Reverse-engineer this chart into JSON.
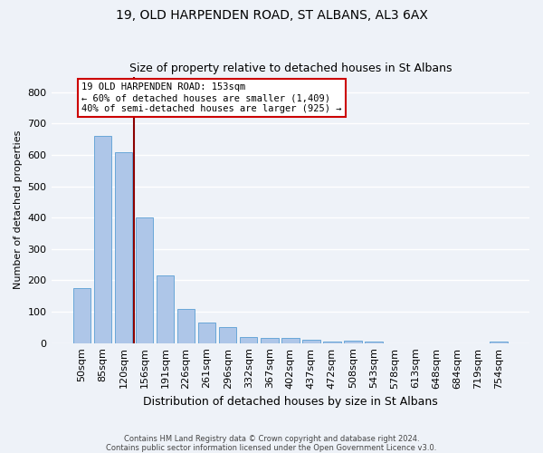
{
  "title1": "19, OLD HARPENDEN ROAD, ST ALBANS, AL3 6AX",
  "title2": "Size of property relative to detached houses in St Albans",
  "xlabel": "Distribution of detached houses by size in St Albans",
  "ylabel": "Number of detached properties",
  "footnote": "Contains HM Land Registry data © Crown copyright and database right 2024.\nContains public sector information licensed under the Open Government Licence v3.0.",
  "categories": [
    "50sqm",
    "85sqm",
    "120sqm",
    "156sqm",
    "191sqm",
    "226sqm",
    "261sqm",
    "296sqm",
    "332sqm",
    "367sqm",
    "402sqm",
    "437sqm",
    "472sqm",
    "508sqm",
    "543sqm",
    "578sqm",
    "613sqm",
    "648sqm",
    "684sqm",
    "719sqm",
    "754sqm"
  ],
  "values": [
    175,
    660,
    610,
    400,
    215,
    110,
    65,
    50,
    20,
    15,
    15,
    12,
    5,
    7,
    5,
    0,
    0,
    0,
    0,
    0,
    4
  ],
  "bar_color": "#aec6e8",
  "bar_edge_color": "#5a9fd4",
  "vline_color": "#8b0000",
  "annotation_text": "19 OLD HARPENDEN ROAD: 153sqm\n← 60% of detached houses are smaller (1,409)\n40% of semi-detached houses are larger (925) →",
  "annotation_box_color": "#ffffff",
  "annotation_box_edge": "#cc0000",
  "ylim": [
    0,
    850
  ],
  "yticks": [
    0,
    100,
    200,
    300,
    400,
    500,
    600,
    700,
    800
  ],
  "background_color": "#eef2f8",
  "grid_color": "#ffffff",
  "title1_fontsize": 10,
  "title2_fontsize": 9,
  "xlabel_fontsize": 9,
  "ylabel_fontsize": 8,
  "tick_fontsize": 8,
  "footnote_fontsize": 6,
  "annot_fontsize": 7.5
}
